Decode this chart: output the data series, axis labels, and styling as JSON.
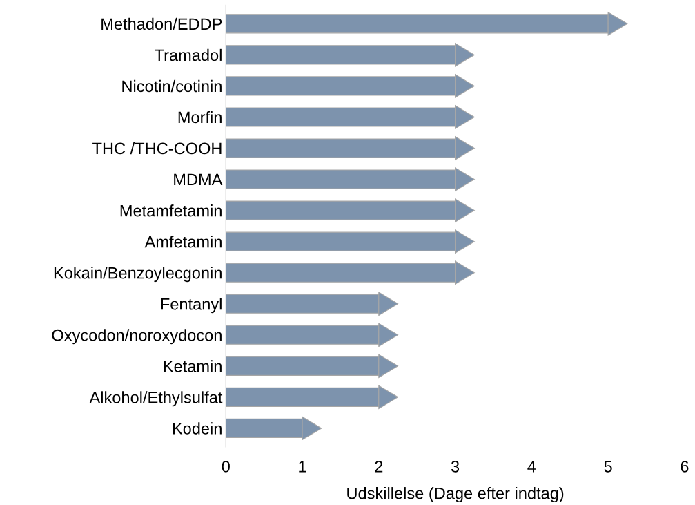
{
  "chart_data": {
    "type": "bar",
    "orientation": "horizontal",
    "xlabel": "Udskillelse (Dage efter indtag)",
    "categories": [
      "Methadon/EDDP",
      "Tramadol",
      "Nicotin/cotinin",
      "Morfin",
      "THC /THC-COOH",
      "MDMA",
      "Metamfetamin",
      "Amfetamin",
      "Kokain/Benzoylecgonin",
      "Fentanyl",
      "Oxycodon/noroxydocon",
      "Ketamin",
      "Alkohol/Ethylsulfat",
      "Kodein"
    ],
    "values": [
      5,
      3,
      3,
      3,
      3,
      3,
      3,
      3,
      3,
      2,
      2,
      2,
      2,
      1
    ],
    "color": "#7d93ad",
    "xlim": [
      0,
      6
    ],
    "xticks": [
      0,
      1,
      2,
      3,
      4,
      5,
      6
    ],
    "grid": false,
    "legend": false
  }
}
